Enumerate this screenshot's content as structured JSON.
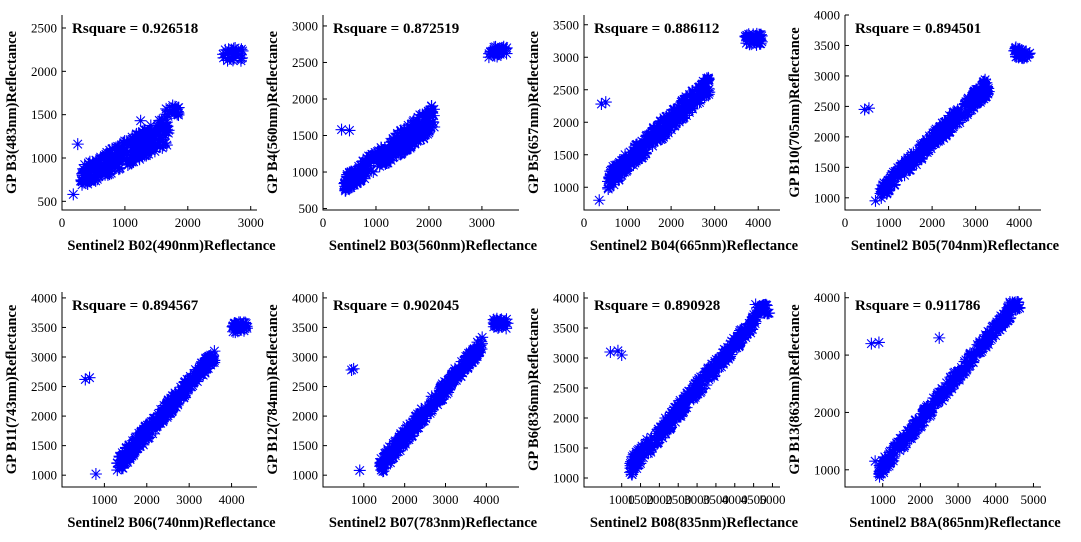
{
  "colors": {
    "marker": "#0000ff",
    "axis": "#000000",
    "background": "#ffffff"
  },
  "chart_data": [
    {
      "type": "scatter",
      "marker": "asterisk",
      "annotation": "Rsquare = 0.926518",
      "xlabel": "Sentinel2 B02(490nm)Reflectance",
      "ylabel": "GP B3(483nm)Reflectance",
      "xlim": [
        0,
        3100
      ],
      "ylim": [
        400,
        2650
      ],
      "xticks": [
        0,
        1000,
        2000,
        3000
      ],
      "yticks": [
        500,
        1000,
        1500,
        2000,
        2500
      ],
      "groups": [
        {
          "type": "band",
          "x0": 300,
          "x1": 1700,
          "y0lo": 650,
          "y0hi": 900,
          "y1lo": 1150,
          "y1hi": 1500,
          "n": 320
        },
        {
          "type": "cluster",
          "cx": 1750,
          "cy": 1550,
          "rx": 120,
          "ry": 60,
          "n": 20
        },
        {
          "type": "cluster",
          "cx": 2720,
          "cy": 2200,
          "rx": 160,
          "ry": 80,
          "n": 30
        },
        {
          "type": "point",
          "x": 180,
          "y": 580
        },
        {
          "type": "point",
          "x": 250,
          "y": 1160
        },
        {
          "type": "point",
          "x": 1250,
          "y": 1430
        }
      ]
    },
    {
      "type": "scatter",
      "marker": "asterisk",
      "annotation": "Rsquare = 0.872519",
      "xlabel": "Sentinel2 B03(560nm)Reflectance",
      "ylabel": "GP B4(560nm)Reflectance",
      "xlim": [
        0,
        3700
      ],
      "ylim": [
        480,
        3150
      ],
      "xticks": [
        0,
        1000,
        2000,
        3000
      ],
      "yticks": [
        500,
        1000,
        1500,
        2000,
        2500,
        3000
      ],
      "groups": [
        {
          "type": "band",
          "x0": 400,
          "x1": 2100,
          "y0lo": 720,
          "y0hi": 950,
          "y1lo": 1550,
          "y1hi": 1950,
          "n": 340
        },
        {
          "type": "cluster",
          "cx": 3300,
          "cy": 2650,
          "rx": 170,
          "ry": 80,
          "n": 30
        },
        {
          "type": "point",
          "x": 350,
          "y": 1580
        },
        {
          "type": "point",
          "x": 500,
          "y": 1570
        }
      ]
    },
    {
      "type": "scatter",
      "marker": "asterisk",
      "annotation": "Rsquare = 0.886112",
      "xlabel": "Sentinel2 B04(665nm)Reflectance",
      "ylabel": "GP B5(657nm)Reflectance",
      "xlim": [
        0,
        4500
      ],
      "ylim": [
        650,
        3650
      ],
      "xticks": [
        0,
        1000,
        2000,
        3000,
        4000
      ],
      "yticks": [
        1000,
        1500,
        2000,
        2500,
        3000,
        3500
      ],
      "groups": [
        {
          "type": "band",
          "x0": 550,
          "x1": 2900,
          "y0lo": 950,
          "y0hi": 1250,
          "y1lo": 2450,
          "y1hi": 2750,
          "n": 340
        },
        {
          "type": "cluster",
          "cx": 3900,
          "cy": 3270,
          "rx": 200,
          "ry": 90,
          "n": 30
        },
        {
          "type": "point",
          "x": 400,
          "y": 2280
        },
        {
          "type": "point",
          "x": 500,
          "y": 2310
        },
        {
          "type": "point",
          "x": 350,
          "y": 800
        }
      ]
    },
    {
      "type": "scatter",
      "marker": "asterisk",
      "annotation": "Rsquare = 0.894501",
      "xlabel": "Sentinel2 B05(704nm)Reflectance",
      "ylabel": "GP B10(705nm)Reflectance",
      "xlim": [
        0,
        4500
      ],
      "ylim": [
        800,
        4000
      ],
      "xticks": [
        0,
        1000,
        2000,
        3000,
        4000
      ],
      "yticks": [
        1000,
        1500,
        2000,
        2500,
        3000,
        3500,
        4000
      ],
      "groups": [
        {
          "type": "band",
          "x0": 800,
          "x1": 3300,
          "y0lo": 950,
          "y0hi": 1200,
          "y1lo": 2700,
          "y1hi": 3000,
          "n": 340
        },
        {
          "type": "cluster",
          "cx": 4050,
          "cy": 3380,
          "rx": 200,
          "ry": 90,
          "n": 30
        },
        {
          "type": "point",
          "x": 450,
          "y": 2450
        },
        {
          "type": "point",
          "x": 550,
          "y": 2470
        },
        {
          "type": "point",
          "x": 700,
          "y": 950
        }
      ]
    },
    {
      "type": "scatter",
      "marker": "asterisk",
      "annotation": "Rsquare = 0.894567",
      "xlabel": "Sentinel2 B06(740nm)Reflectance",
      "ylabel": "GP B11(743nm)Reflectance",
      "xlim": [
        0,
        4600
      ],
      "ylim": [
        800,
        4100
      ],
      "xticks": [
        1000,
        2000,
        3000,
        4000
      ],
      "yticks": [
        1000,
        1500,
        2000,
        2500,
        3000,
        3500,
        4000
      ],
      "groups": [
        {
          "type": "band",
          "x0": 1300,
          "x1": 3600,
          "y0lo": 1000,
          "y0hi": 1300,
          "y1lo": 2900,
          "y1hi": 3150,
          "n": 340
        },
        {
          "type": "cluster",
          "cx": 4200,
          "cy": 3500,
          "rx": 180,
          "ry": 90,
          "n": 30
        },
        {
          "type": "point",
          "x": 550,
          "y": 2620
        },
        {
          "type": "point",
          "x": 650,
          "y": 2650
        },
        {
          "type": "point",
          "x": 800,
          "y": 1020
        }
      ]
    },
    {
      "type": "scatter",
      "marker": "asterisk",
      "annotation": "Rsquare = 0.902045",
      "xlabel": "Sentinel2 B07(783nm)Reflectance",
      "ylabel": "GP B12(784nm)Reflectance",
      "xlim": [
        0,
        4800
      ],
      "ylim": [
        800,
        4100
      ],
      "xticks": [
        1000,
        2000,
        3000,
        4000
      ],
      "yticks": [
        1000,
        1500,
        2000,
        2500,
        3000,
        3500,
        4000
      ],
      "groups": [
        {
          "type": "band",
          "x0": 1400,
          "x1": 3900,
          "y0lo": 1000,
          "y0hi": 1300,
          "y1lo": 3100,
          "y1hi": 3350,
          "n": 340
        },
        {
          "type": "cluster",
          "cx": 4350,
          "cy": 3560,
          "rx": 180,
          "ry": 90,
          "n": 30
        },
        {
          "type": "point",
          "x": 700,
          "y": 2780
        },
        {
          "type": "point",
          "x": 750,
          "y": 2800
        },
        {
          "type": "point",
          "x": 900,
          "y": 1080
        }
      ]
    },
    {
      "type": "scatter",
      "marker": "asterisk",
      "annotation": "Rsquare = 0.890928",
      "xlabel": "Sentinel2 B08(835nm)Reflectance",
      "ylabel": "GP B6(836nm)Reflectance",
      "xlim": [
        0,
        5200
      ],
      "ylim": [
        850,
        4100
      ],
      "xticks": [
        1000,
        1500,
        2000,
        2500,
        3000,
        3500,
        4000,
        4500,
        5000
      ],
      "yticks": [
        1000,
        1500,
        2000,
        2500,
        3000,
        3500,
        4000
      ],
      "groups": [
        {
          "type": "band",
          "x0": 1200,
          "x1": 4600,
          "y0lo": 1000,
          "y0hi": 1300,
          "y1lo": 3550,
          "y1hi": 3800,
          "n": 360
        },
        {
          "type": "cluster",
          "cx": 4750,
          "cy": 3820,
          "rx": 200,
          "ry": 80,
          "n": 25
        },
        {
          "type": "point",
          "x": 700,
          "y": 3100
        },
        {
          "type": "point",
          "x": 900,
          "y": 3120
        },
        {
          "type": "point",
          "x": 1000,
          "y": 3050
        }
      ]
    },
    {
      "type": "scatter",
      "marker": "asterisk",
      "annotation": "Rsquare = 0.911786",
      "xlabel": "Sentinel2 B8A(865nm)Reflectance",
      "ylabel": "GP B13(863nm)Reflectance",
      "xlim": [
        0,
        5200
      ],
      "ylim": [
        700,
        4100
      ],
      "xticks": [
        1000,
        2000,
        3000,
        4000,
        5000
      ],
      "yticks": [
        1000,
        2000,
        3000,
        4000
      ],
      "groups": [
        {
          "type": "band",
          "x0": 900,
          "x1": 4400,
          "y0lo": 850,
          "y0hi": 1100,
          "y1lo": 3650,
          "y1hi": 3900,
          "n": 360
        },
        {
          "type": "cluster",
          "cx": 4500,
          "cy": 3860,
          "rx": 150,
          "ry": 70,
          "n": 20
        },
        {
          "type": "point",
          "x": 700,
          "y": 3200
        },
        {
          "type": "point",
          "x": 900,
          "y": 3220
        },
        {
          "type": "point",
          "x": 2500,
          "y": 3300
        },
        {
          "type": "point",
          "x": 800,
          "y": 1150
        }
      ]
    }
  ]
}
